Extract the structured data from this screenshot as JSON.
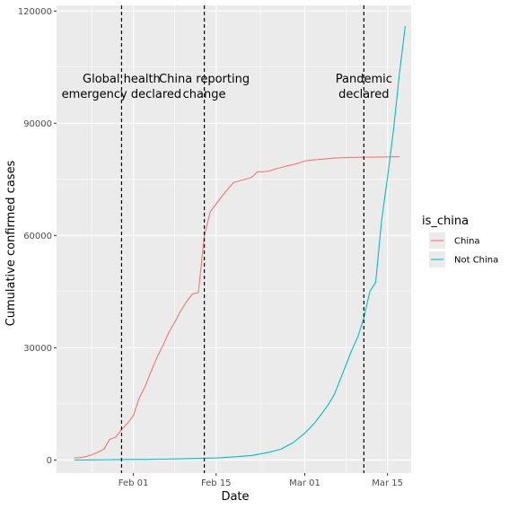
{
  "chart_data": {
    "type": "line",
    "xlabel": "Date",
    "ylabel": "Cumulative confirmed cases",
    "xlim": [
      "2020-01-19",
      "2020-03-19"
    ],
    "ylim": [
      -3500,
      121500
    ],
    "x_ticks": [
      {
        "date": "2020-02-01",
        "label": "Feb 01"
      },
      {
        "date": "2020-02-15",
        "label": "Feb 15"
      },
      {
        "date": "2020-03-01",
        "label": "Mar 01"
      },
      {
        "date": "2020-03-15",
        "label": "Mar 15"
      }
    ],
    "y_ticks": [
      {
        "value": 0,
        "label": "0"
      },
      {
        "value": 30000,
        "label": "30000"
      },
      {
        "value": 60000,
        "label": "60000"
      },
      {
        "value": 90000,
        "label": "90000"
      },
      {
        "value": 120000,
        "label": "120000"
      }
    ],
    "grid": true,
    "legend": {
      "title": "is_china",
      "position": "right"
    },
    "series": [
      {
        "name": "China",
        "color": "#F8766D",
        "points": [
          [
            "2020-01-22",
            548
          ],
          [
            "2020-01-23",
            643
          ],
          [
            "2020-01-24",
            920
          ],
          [
            "2020-01-25",
            1406
          ],
          [
            "2020-01-26",
            2075
          ],
          [
            "2020-01-27",
            2877
          ],
          [
            "2020-01-28",
            5509
          ],
          [
            "2020-01-29",
            6087
          ],
          [
            "2020-01-30",
            8141
          ],
          [
            "2020-01-31",
            9802
          ],
          [
            "2020-02-01",
            11891
          ],
          [
            "2020-02-02",
            16630
          ],
          [
            "2020-02-03",
            19716
          ],
          [
            "2020-02-04",
            23707
          ],
          [
            "2020-02-05",
            27440
          ],
          [
            "2020-02-06",
            30587
          ],
          [
            "2020-02-07",
            34110
          ],
          [
            "2020-02-08",
            36814
          ],
          [
            "2020-02-09",
            39829
          ],
          [
            "2020-02-10",
            42354
          ],
          [
            "2020-02-11",
            44386
          ],
          [
            "2020-02-12",
            44759
          ],
          [
            "2020-02-13",
            59895
          ],
          [
            "2020-02-14",
            66358
          ],
          [
            "2020-02-15",
            68413
          ],
          [
            "2020-02-16",
            70513
          ],
          [
            "2020-02-17",
            72434
          ],
          [
            "2020-02-18",
            74211
          ],
          [
            "2020-02-19",
            74619
          ],
          [
            "2020-02-20",
            75077
          ],
          [
            "2020-02-21",
            75550
          ],
          [
            "2020-02-22",
            77001
          ],
          [
            "2020-02-23",
            77022
          ],
          [
            "2020-02-24",
            77241
          ],
          [
            "2020-02-25",
            77754
          ],
          [
            "2020-02-26",
            78166
          ],
          [
            "2020-02-27",
            78600
          ],
          [
            "2020-02-28",
            78928
          ],
          [
            "2020-02-29",
            79356
          ],
          [
            "2020-03-01",
            79932
          ],
          [
            "2020-03-02",
            80136
          ],
          [
            "2020-03-03",
            80261
          ],
          [
            "2020-03-04",
            80386
          ],
          [
            "2020-03-05",
            80537
          ],
          [
            "2020-03-06",
            80690
          ],
          [
            "2020-03-07",
            80770
          ],
          [
            "2020-03-08",
            80823
          ],
          [
            "2020-03-09",
            80860
          ],
          [
            "2020-03-10",
            80887
          ],
          [
            "2020-03-11",
            80921
          ],
          [
            "2020-03-12",
            80932
          ],
          [
            "2020-03-13",
            80945
          ],
          [
            "2020-03-14",
            80977
          ],
          [
            "2020-03-15",
            81003
          ],
          [
            "2020-03-16",
            81033
          ],
          [
            "2020-03-17",
            81058
          ]
        ]
      },
      {
        "name": "Not China",
        "color": "#00BFC4",
        "points": [
          [
            "2020-01-22",
            7
          ],
          [
            "2020-01-25",
            35
          ],
          [
            "2020-01-28",
            70
          ],
          [
            "2020-01-31",
            132
          ],
          [
            "2020-02-03",
            153
          ],
          [
            "2020-02-06",
            219
          ],
          [
            "2020-02-09",
            330
          ],
          [
            "2020-02-12",
            447
          ],
          [
            "2020-02-15",
            536
          ],
          [
            "2020-02-18",
            826
          ],
          [
            "2020-02-21",
            1200
          ],
          [
            "2020-02-24",
            2069
          ],
          [
            "2020-02-26",
            2918
          ],
          [
            "2020-02-28",
            4600
          ],
          [
            "2020-03-01",
            7169
          ],
          [
            "2020-03-02",
            8774
          ],
          [
            "2020-03-03",
            10566
          ],
          [
            "2020-03-04",
            12668
          ],
          [
            "2020-03-05",
            14871
          ],
          [
            "2020-03-06",
            17500
          ],
          [
            "2020-03-07",
            21500
          ],
          [
            "2020-03-08",
            25500
          ],
          [
            "2020-03-09",
            29500
          ],
          [
            "2020-03-10",
            33000
          ],
          [
            "2020-03-11",
            38000
          ],
          [
            "2020-03-12",
            45000
          ],
          [
            "2020-03-13",
            47500
          ],
          [
            "2020-03-14",
            64000
          ],
          [
            "2020-03-15",
            75500
          ],
          [
            "2020-03-16",
            88000
          ],
          [
            "2020-03-17",
            103000
          ],
          [
            "2020-03-18",
            116000
          ]
        ]
      }
    ],
    "vlines": [
      {
        "date": "2020-01-30",
        "label_lines": [
          "Global health",
          "emergency declared"
        ]
      },
      {
        "date": "2020-02-13",
        "label_lines": [
          "China reporting",
          "change"
        ]
      },
      {
        "date": "2020-03-11",
        "label_lines": [
          "Pandemic",
          "declared"
        ]
      }
    ]
  }
}
